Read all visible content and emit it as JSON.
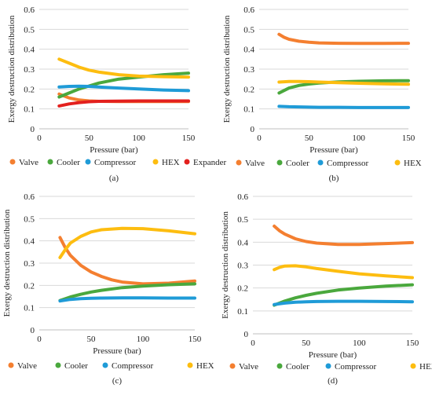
{
  "figure": {
    "panels": [
      {
        "label": "(a)"
      },
      {
        "label": "(b)"
      },
      {
        "label": "(c)"
      },
      {
        "label": "(d)"
      }
    ]
  },
  "chart_data": [
    {
      "type": "line",
      "panel": "(a)",
      "xlabel": "Pressure (bar)",
      "ylabel": "Exergy destruction distribution",
      "xlim": [
        0,
        150
      ],
      "ylim": [
        0,
        0.6
      ],
      "xticks": [
        0,
        50,
        100,
        150
      ],
      "yticks": [
        0,
        0.1,
        0.2,
        0.3,
        0.4,
        0.5,
        0.6
      ],
      "xtick_labels": [
        "0",
        "50",
        "100",
        "150"
      ],
      "ytick_labels": [
        "0",
        "0.1",
        "0.2",
        "0.3",
        "0.4",
        "0.5",
        "0.6"
      ],
      "grid": "horizontal",
      "legend_position": "bottom",
      "series": [
        {
          "name": "Valve",
          "color": "#f47f30",
          "x": [
            20,
            25,
            30,
            40,
            50,
            60,
            80,
            100,
            125,
            150
          ],
          "values": [
            0.175,
            0.165,
            0.155,
            0.145,
            0.14,
            0.138,
            0.137,
            0.137,
            0.137,
            0.137
          ]
        },
        {
          "name": "Cooler",
          "color": "#4aa83d",
          "x": [
            20,
            30,
            40,
            50,
            60,
            80,
            100,
            125,
            150
          ],
          "values": [
            0.16,
            0.18,
            0.2,
            0.215,
            0.23,
            0.25,
            0.26,
            0.272,
            0.28
          ]
        },
        {
          "name": "Compressor",
          "color": "#1f9bd7",
          "x": [
            20,
            30,
            40,
            50,
            60,
            80,
            100,
            125,
            150
          ],
          "values": [
            0.21,
            0.213,
            0.214,
            0.213,
            0.21,
            0.205,
            0.2,
            0.195,
            0.192
          ]
        },
        {
          "name": "HEX",
          "color": "#fdbd10",
          "x": [
            20,
            30,
            40,
            50,
            60,
            80,
            100,
            125,
            150
          ],
          "values": [
            0.35,
            0.33,
            0.31,
            0.295,
            0.285,
            0.272,
            0.265,
            0.262,
            0.26
          ]
        },
        {
          "name": "Expander",
          "color": "#e3201e",
          "x": [
            20,
            30,
            40,
            50,
            60,
            80,
            100,
            125,
            150
          ],
          "values": [
            0.115,
            0.125,
            0.132,
            0.136,
            0.138,
            0.139,
            0.14,
            0.14,
            0.14
          ]
        }
      ]
    },
    {
      "type": "line",
      "panel": "(b)",
      "xlabel": "Pressure (bar)",
      "ylabel": "Exergy destruction distribution",
      "xlim": [
        0,
        150
      ],
      "ylim": [
        0,
        0.6
      ],
      "xticks": [
        0,
        50,
        100,
        150
      ],
      "yticks": [
        0,
        0.1,
        0.2,
        0.3,
        0.4,
        0.5,
        0.6
      ],
      "xtick_labels": [
        "0",
        "50",
        "100",
        "150"
      ],
      "ytick_labels": [
        "0",
        "0.1",
        "0.2",
        "0.3",
        "0.4",
        "0.5",
        "0.6"
      ],
      "grid": "horizontal",
      "legend_position": "bottom",
      "series": [
        {
          "name": "Valve",
          "color": "#f47f30",
          "x": [
            20,
            25,
            30,
            40,
            50,
            60,
            80,
            100,
            125,
            150
          ],
          "values": [
            0.475,
            0.46,
            0.45,
            0.44,
            0.435,
            0.432,
            0.43,
            0.429,
            0.429,
            0.43
          ]
        },
        {
          "name": "Cooler",
          "color": "#4aa83d",
          "x": [
            20,
            30,
            40,
            50,
            60,
            80,
            100,
            125,
            150
          ],
          "values": [
            0.18,
            0.205,
            0.218,
            0.225,
            0.23,
            0.236,
            0.239,
            0.241,
            0.242
          ]
        },
        {
          "name": "Compressor",
          "color": "#1f9bd7",
          "x": [
            20,
            30,
            40,
            50,
            60,
            80,
            100,
            125,
            150
          ],
          "values": [
            0.113,
            0.111,
            0.11,
            0.109,
            0.108,
            0.108,
            0.107,
            0.107,
            0.107
          ]
        },
        {
          "name": "HEX",
          "color": "#fdbd10",
          "x": [
            20,
            30,
            40,
            50,
            60,
            80,
            100,
            125,
            150
          ],
          "values": [
            0.235,
            0.238,
            0.238,
            0.237,
            0.235,
            0.232,
            0.229,
            0.226,
            0.224
          ]
        }
      ]
    },
    {
      "type": "line",
      "panel": "(c)",
      "xlabel": "Pressure (bar)",
      "ylabel": "Exergy destruction distribution",
      "xlim": [
        0,
        150
      ],
      "ylim": [
        0,
        0.6
      ],
      "xticks": [
        0,
        50,
        100,
        150
      ],
      "yticks": [
        0,
        0.1,
        0.2,
        0.3,
        0.4,
        0.5,
        0.6
      ],
      "xtick_labels": [
        "0",
        "50",
        "100",
        "150"
      ],
      "ytick_labels": [
        "0",
        "0.1",
        "0.2",
        "0.3",
        "0.4",
        "0.5",
        "0.6"
      ],
      "grid": "horizontal",
      "legend_position": "bottom",
      "series": [
        {
          "name": "Valve",
          "color": "#f47f30",
          "x": [
            20,
            25,
            30,
            40,
            50,
            60,
            70,
            80,
            100,
            125,
            150
          ],
          "values": [
            0.415,
            0.37,
            0.335,
            0.29,
            0.26,
            0.24,
            0.225,
            0.215,
            0.207,
            0.21,
            0.22
          ]
        },
        {
          "name": "Cooler",
          "color": "#4aa83d",
          "x": [
            20,
            30,
            40,
            50,
            60,
            80,
            100,
            125,
            150
          ],
          "values": [
            0.132,
            0.148,
            0.16,
            0.17,
            0.178,
            0.19,
            0.197,
            0.203,
            0.207
          ]
        },
        {
          "name": "Compressor",
          "color": "#1f9bd7",
          "x": [
            20,
            30,
            40,
            50,
            60,
            80,
            100,
            125,
            150
          ],
          "values": [
            0.13,
            0.137,
            0.14,
            0.142,
            0.143,
            0.144,
            0.144,
            0.143,
            0.143
          ]
        },
        {
          "name": "HEX",
          "color": "#fdbd10",
          "x": [
            20,
            25,
            30,
            40,
            50,
            60,
            80,
            100,
            125,
            150
          ],
          "values": [
            0.325,
            0.36,
            0.39,
            0.42,
            0.44,
            0.45,
            0.456,
            0.455,
            0.445,
            0.432
          ]
        }
      ]
    },
    {
      "type": "line",
      "panel": "(d)",
      "xlabel": "Pressure (bar)",
      "ylabel": "Exergy destruction distribution",
      "xlim": [
        0,
        150
      ],
      "ylim": [
        0,
        0.6
      ],
      "xticks": [
        0,
        50,
        100,
        150
      ],
      "yticks": [
        0,
        0.1,
        0.2,
        0.3,
        0.4,
        0.5,
        0.6
      ],
      "xtick_labels": [
        "0",
        "50",
        "100",
        "150"
      ],
      "ytick_labels": [
        "0",
        "0.1",
        "0.2",
        "0.3",
        "0.4",
        "0.5",
        "0.6"
      ],
      "grid": "horizontal",
      "legend_position": "bottom",
      "series": [
        {
          "name": "Valve",
          "color": "#f47f30",
          "x": [
            20,
            25,
            30,
            40,
            50,
            60,
            80,
            100,
            125,
            150
          ],
          "values": [
            0.47,
            0.45,
            0.435,
            0.415,
            0.403,
            0.396,
            0.39,
            0.39,
            0.394,
            0.398
          ]
        },
        {
          "name": "Cooler",
          "color": "#4aa83d",
          "x": [
            20,
            30,
            40,
            50,
            60,
            80,
            100,
            125,
            150
          ],
          "values": [
            0.125,
            0.143,
            0.157,
            0.168,
            0.177,
            0.191,
            0.2,
            0.208,
            0.214
          ]
        },
        {
          "name": "Compressor",
          "color": "#1f9bd7",
          "x": [
            20,
            30,
            40,
            50,
            60,
            80,
            100,
            125,
            150
          ],
          "values": [
            0.128,
            0.134,
            0.138,
            0.14,
            0.141,
            0.142,
            0.142,
            0.141,
            0.14
          ]
        },
        {
          "name": "HEX",
          "color": "#fdbd10",
          "x": [
            20,
            25,
            30,
            40,
            50,
            60,
            80,
            100,
            125,
            150
          ],
          "values": [
            0.28,
            0.29,
            0.296,
            0.297,
            0.292,
            0.285,
            0.273,
            0.262,
            0.253,
            0.245
          ]
        }
      ]
    }
  ]
}
